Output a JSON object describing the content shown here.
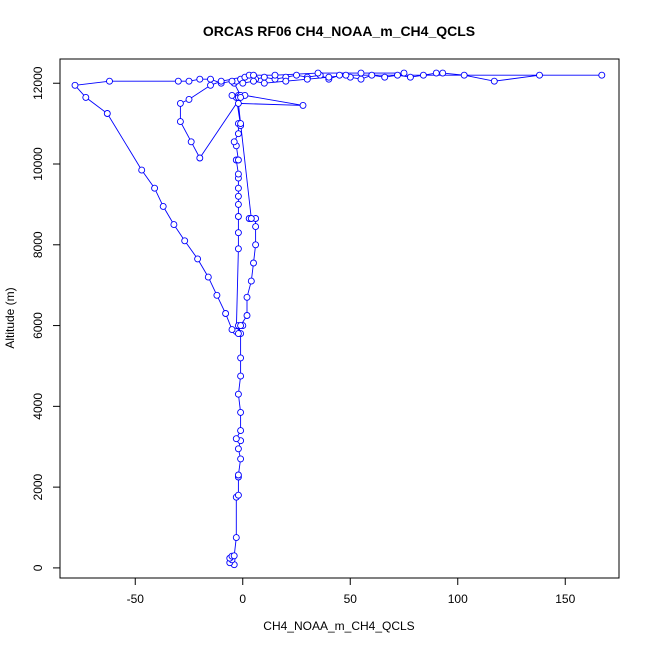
{
  "chart_data": {
    "type": "scatter",
    "title": "ORCAS RF06 CH4_NOAA_m_CH4_QCLS",
    "xlabel": "CH4_NOAA_m_CH4_QCLS",
    "ylabel": "Altitude (m)",
    "xlim": [
      -85,
      175
    ],
    "ylim": [
      -250,
      12600
    ],
    "xticks": [
      -50,
      0,
      50,
      100,
      150
    ],
    "yticks": [
      0,
      2000,
      4000,
      6000,
      8000,
      10000,
      12000
    ],
    "grid": false,
    "series": [
      {
        "marker": "open-circle",
        "line": "connected",
        "color": "#0000ff",
        "points": [
          [
            -4,
            80
          ],
          [
            -6,
            130
          ],
          [
            -5,
            200
          ],
          [
            -6,
            240
          ],
          [
            -5,
            290
          ],
          [
            -4,
            300
          ],
          [
            -3,
            750
          ],
          [
            -3,
            1750
          ],
          [
            -2,
            1800
          ],
          [
            -2,
            2250
          ],
          [
            -2,
            2300
          ],
          [
            -1,
            2700
          ],
          [
            -2,
            2950
          ],
          [
            -1,
            3150
          ],
          [
            -3,
            3200
          ],
          [
            -1,
            3400
          ],
          [
            -1,
            3850
          ],
          [
            -2,
            4300
          ],
          [
            -1,
            4750
          ],
          [
            -1,
            5200
          ],
          [
            -1,
            5800
          ],
          [
            -2,
            6000
          ],
          [
            0,
            6000
          ],
          [
            -3,
            5850
          ],
          [
            -2,
            7900
          ],
          [
            -2,
            8300
          ],
          [
            -2,
            8700
          ],
          [
            -2,
            9000
          ],
          [
            -2,
            9200
          ],
          [
            -2,
            9400
          ],
          [
            -2,
            9650
          ],
          [
            -2,
            9750
          ],
          [
            -3,
            10100
          ],
          [
            -2,
            10100
          ],
          [
            -3,
            10450
          ],
          [
            -4,
            10550
          ],
          [
            -2,
            10750
          ],
          [
            -2,
            11000
          ],
          [
            -1,
            10950
          ],
          [
            -3,
            11650
          ],
          [
            -2,
            11700
          ],
          [
            -2,
            11650
          ],
          [
            -5,
            11700
          ],
          [
            -1,
            11700
          ],
          [
            -4,
            12000
          ],
          [
            -3,
            12050
          ],
          [
            -1,
            12100
          ],
          [
            1,
            12150
          ],
          [
            3,
            12200
          ],
          [
            6,
            12100
          ],
          [
            10,
            12150
          ],
          [
            15,
            12100
          ],
          [
            20,
            12150
          ],
          [
            25,
            12200
          ],
          [
            30,
            12150
          ],
          [
            36,
            12200
          ],
          [
            40,
            12100
          ],
          [
            45,
            12200
          ],
          [
            50,
            12150
          ],
          [
            55,
            12100
          ],
          [
            60,
            12200
          ],
          [
            66,
            12150
          ],
          [
            72,
            12200
          ],
          [
            78,
            12150
          ],
          [
            84,
            12200
          ],
          [
            90,
            12250
          ],
          [
            93,
            12250
          ],
          [
            103,
            12200
          ],
          [
            117,
            12050
          ],
          [
            138,
            12200
          ],
          [
            167,
            12200
          ],
          [
            48,
            12200
          ],
          [
            40,
            12150
          ],
          [
            30,
            12100
          ],
          [
            20,
            12050
          ],
          [
            10,
            12000
          ],
          [
            5,
            12050
          ],
          [
            0,
            12000
          ],
          [
            -5,
            12050
          ],
          [
            -10,
            12000
          ],
          [
            -15,
            12100
          ],
          [
            -20,
            12100
          ],
          [
            -25,
            12050
          ],
          [
            -30,
            12050
          ],
          [
            -62,
            12050
          ],
          [
            -78,
            11950
          ],
          [
            -73,
            11650
          ],
          [
            -63,
            11250
          ],
          [
            -47,
            9850
          ],
          [
            -41,
            9400
          ],
          [
            -37,
            8950
          ],
          [
            -32,
            8500
          ],
          [
            -27,
            8100
          ],
          [
            -21,
            7650
          ],
          [
            -16,
            7200
          ],
          [
            -12,
            6750
          ],
          [
            -8,
            6300
          ],
          [
            -5,
            5900
          ],
          [
            -2,
            5800
          ],
          [
            -1,
            6000
          ],
          [
            2,
            6250
          ],
          [
            2,
            6700
          ],
          [
            4,
            7100
          ],
          [
            5,
            7550
          ],
          [
            6,
            8000
          ],
          [
            6,
            8450
          ],
          [
            6,
            8650
          ],
          [
            3,
            8650
          ],
          [
            4,
            8650
          ],
          [
            -1,
            11000
          ],
          [
            -2,
            11500
          ],
          [
            28,
            11450
          ],
          [
            1,
            11700
          ],
          [
            -1,
            11650
          ],
          [
            -20,
            10150
          ],
          [
            -24,
            10550
          ],
          [
            -29,
            11050
          ],
          [
            -29,
            11500
          ],
          [
            -25,
            11600
          ],
          [
            -15,
            11950
          ],
          [
            -10,
            12050
          ],
          [
            5,
            12200
          ],
          [
            15,
            12200
          ],
          [
            35,
            12250
          ],
          [
            55,
            12250
          ],
          [
            75,
            12250
          ]
        ]
      }
    ]
  }
}
